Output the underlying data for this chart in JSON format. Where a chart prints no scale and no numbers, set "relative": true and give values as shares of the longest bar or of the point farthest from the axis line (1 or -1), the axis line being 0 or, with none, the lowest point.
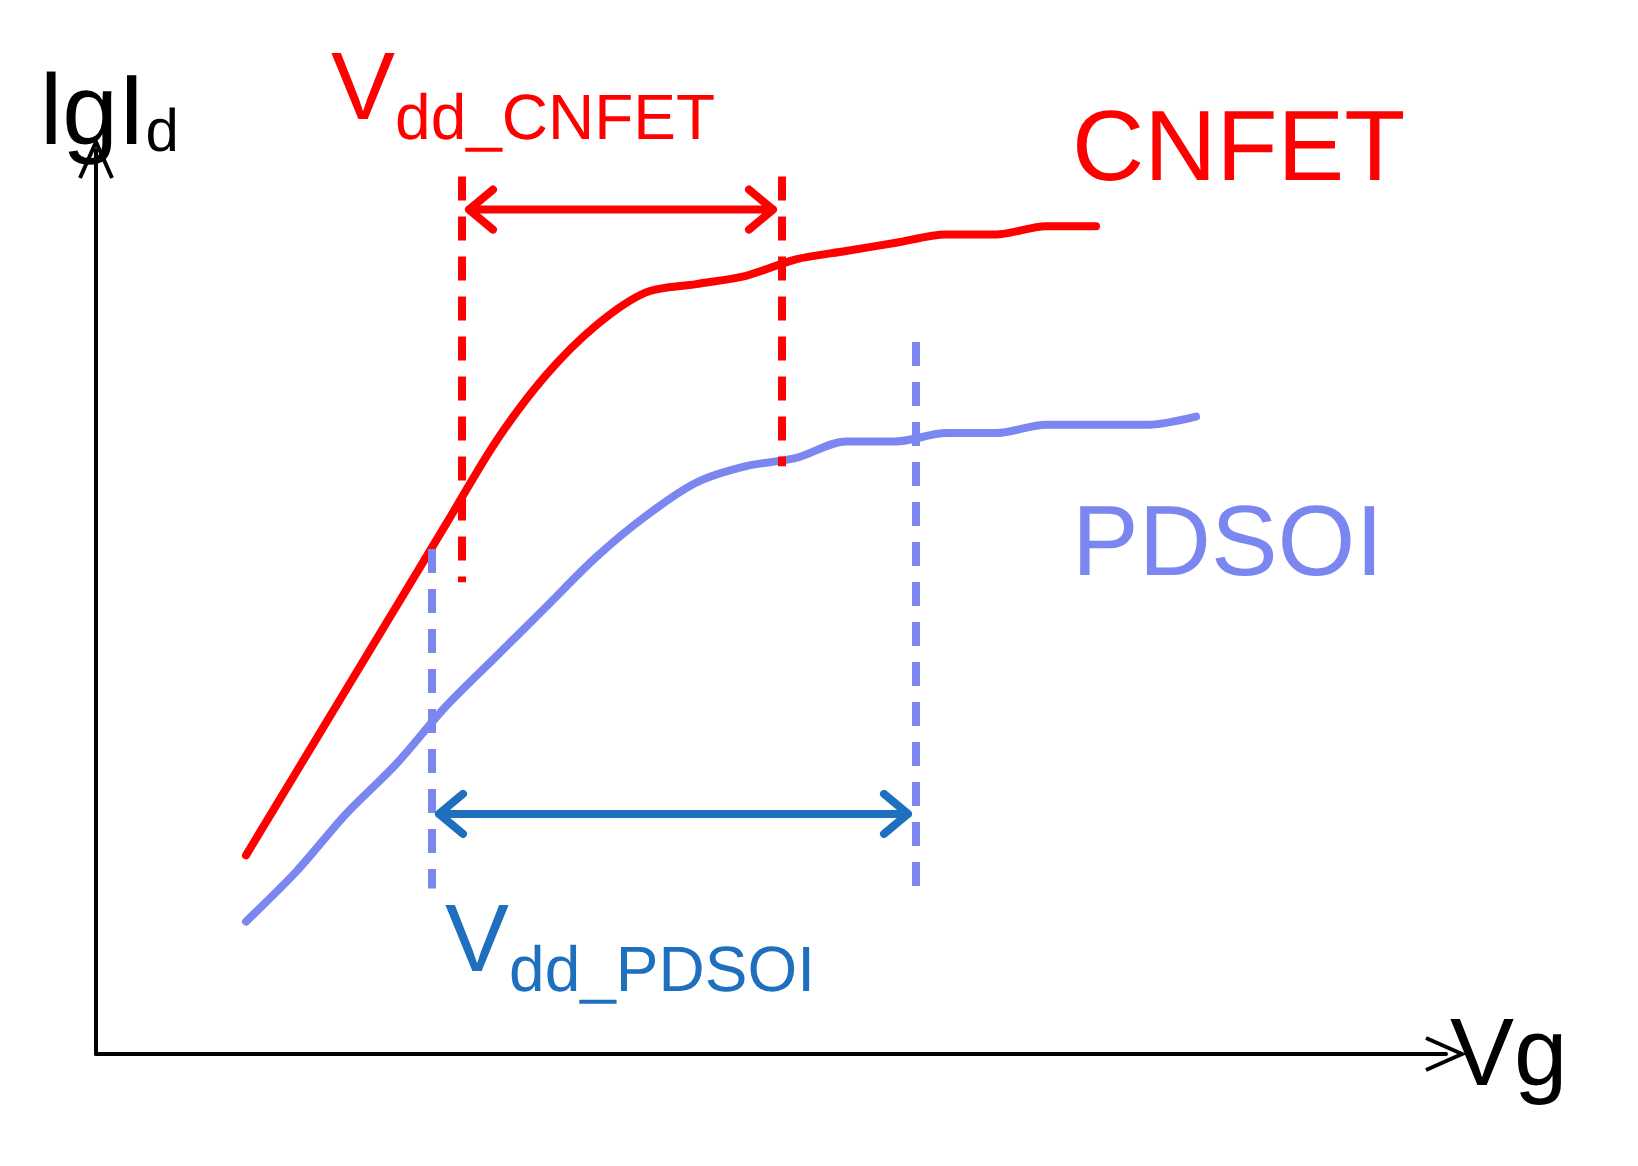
{
  "chart_data": {
    "type": "line",
    "relative": true,
    "xlabel": "Vg",
    "ylabel": "lgI$_{d}$",
    "categories": [
      null,
      null,
      null,
      null,
      null,
      null,
      null,
      null,
      null,
      null,
      null,
      null,
      null,
      null,
      null,
      null,
      null,
      null,
      null,
      null,
      null,
      null,
      null,
      null,
      null,
      null,
      null,
      null
    ],
    "series": [
      {
        "name": "CNFET",
        "color": "#ff0000",
        "values": [
          null,
          null,
          null,
          0.24,
          0.34,
          0.44,
          0.54,
          0.64,
          0.74,
          0.82,
          0.88,
          0.92,
          0.93,
          0.94,
          0.96,
          0.97,
          0.98,
          0.99,
          0.99,
          1.0,
          1.0,
          null,
          null,
          null,
          null,
          null,
          null,
          null
        ]
      },
      {
        "name": "PDSOI",
        "color": "#7b86f0",
        "values": [
          null,
          null,
          null,
          0.16,
          0.22,
          0.29,
          0.35,
          0.42,
          0.48,
          0.54,
          0.6,
          0.65,
          0.69,
          0.71,
          0.72,
          0.74,
          0.74,
          0.75,
          0.75,
          0.76,
          0.76,
          0.76,
          0.77,
          null,
          null,
          null,
          null,
          null
        ]
      }
    ],
    "annotations": [
      "V$_{dd_CNFET}$",
      "V$_{dd_PDSOI}$"
    ],
    "tick_labels": false,
    "grid": false,
    "legend": false,
    "marker": "none",
    "line_style": "solid"
  }
}
